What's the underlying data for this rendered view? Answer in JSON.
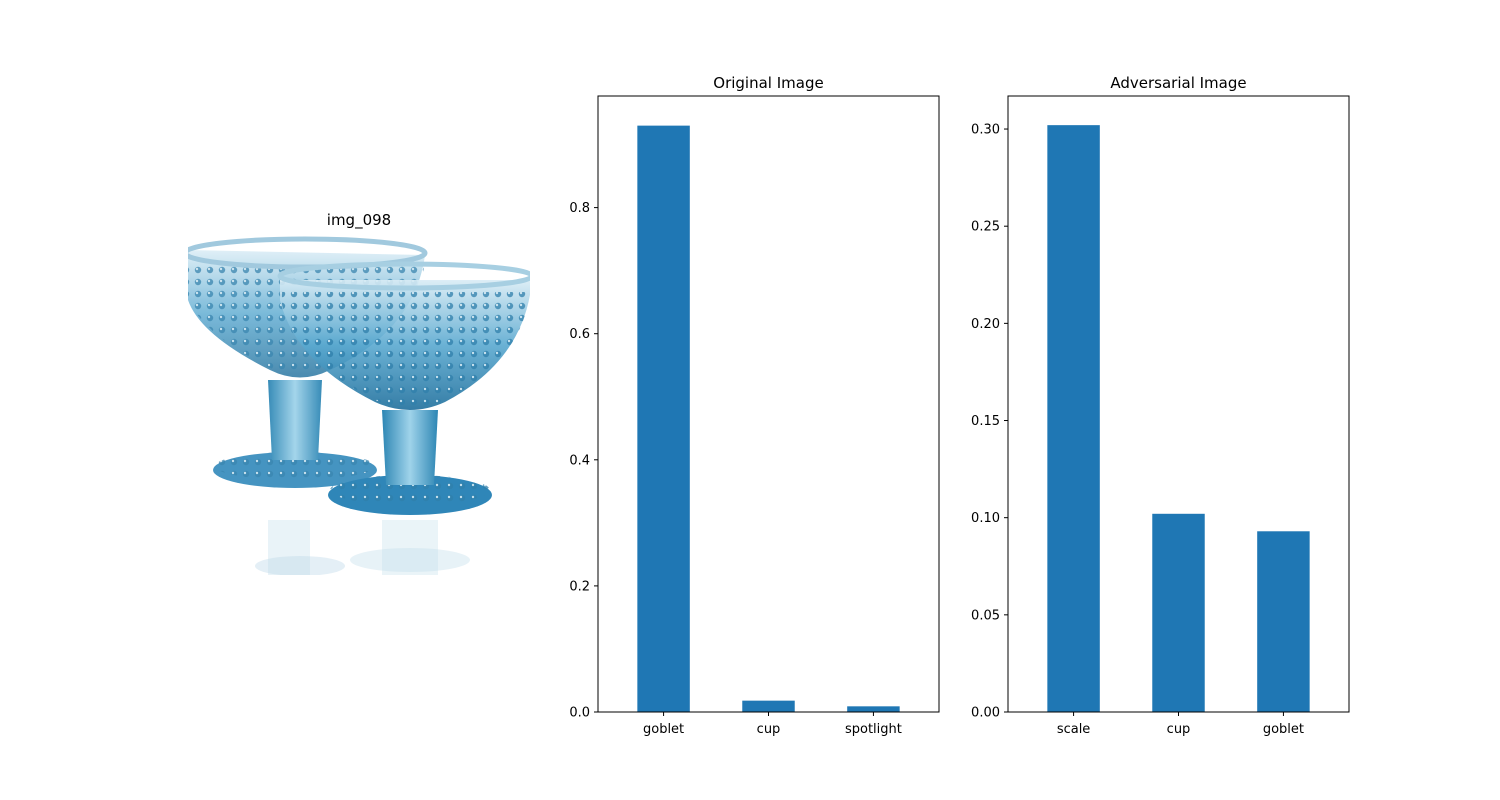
{
  "image_panel": {
    "title": "img_098",
    "icon": "blue-glass-goblets-photo"
  },
  "chart_data": [
    {
      "type": "bar",
      "title": "Original Image",
      "categories": [
        "goblet",
        "cup",
        "spotlight"
      ],
      "values": [
        0.93,
        0.018,
        0.009
      ],
      "xlabel": "",
      "ylabel": "",
      "ylim": [
        0,
        0.977
      ],
      "yticks": [
        0.0,
        0.2,
        0.4,
        0.6,
        0.8
      ],
      "ytick_labels": [
        "0.0",
        "0.2",
        "0.4",
        "0.6",
        "0.8"
      ],
      "grid": false,
      "bar_color": "#1f77b4"
    },
    {
      "type": "bar",
      "title": "Adversarial Image",
      "categories": [
        "scale",
        "cup",
        "goblet"
      ],
      "values": [
        0.302,
        0.102,
        0.093
      ],
      "xlabel": "",
      "ylabel": "",
      "ylim": [
        0,
        0.317
      ],
      "yticks": [
        0.0,
        0.05,
        0.1,
        0.15,
        0.2,
        0.25,
        0.3
      ],
      "ytick_labels": [
        "0.00",
        "0.05",
        "0.10",
        "0.15",
        "0.20",
        "0.25",
        "0.30"
      ],
      "grid": false,
      "bar_color": "#1f77b4"
    }
  ]
}
